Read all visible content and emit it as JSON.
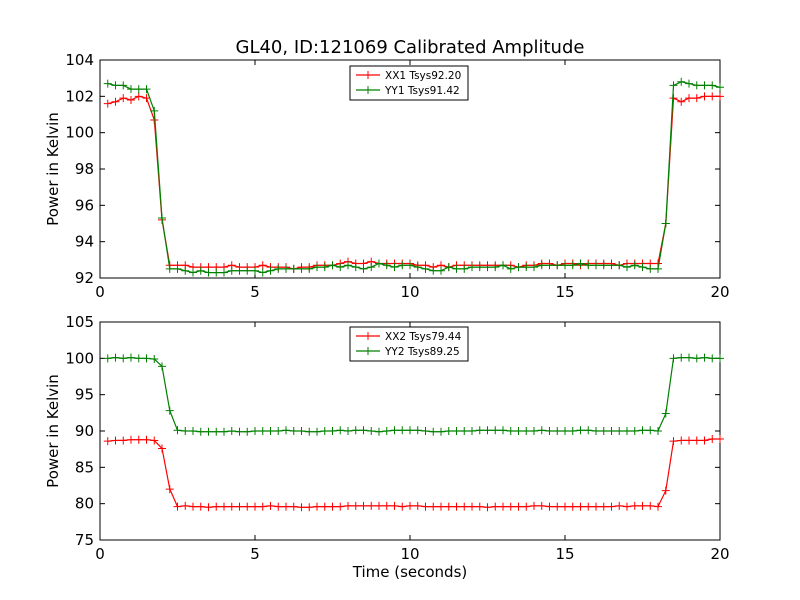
{
  "title": "GL40, ID:121069 Calibrated Amplitude",
  "xlabel": "Time (seconds)",
  "colors": {
    "red": "#ff0000",
    "green": "#008000"
  },
  "chart_data": [
    {
      "type": "line",
      "title": "GL40, ID:121069 Calibrated Amplitude",
      "xlabel": "",
      "ylabel": "Power in Kelvin",
      "xlim": [
        0,
        20
      ],
      "ylim": [
        92,
        104
      ],
      "xticks": [
        "0",
        "5",
        "10",
        "15",
        "20"
      ],
      "yticks": [
        "92",
        "94",
        "96",
        "98",
        "100",
        "102",
        "104"
      ],
      "grid": false,
      "legend_position": "upper-center",
      "x": [
        0.25,
        0.5,
        0.75,
        1.0,
        1.25,
        1.5,
        1.75,
        2.0,
        2.25,
        2.5,
        2.75,
        3.0,
        3.25,
        3.5,
        3.75,
        4.0,
        4.25,
        4.5,
        4.75,
        5.0,
        5.25,
        5.5,
        5.75,
        6.0,
        6.25,
        6.5,
        6.75,
        7.0,
        7.25,
        7.5,
        7.75,
        8.0,
        8.25,
        8.5,
        8.75,
        9.0,
        9.25,
        9.5,
        9.75,
        10.0,
        10.25,
        10.5,
        10.75,
        11.0,
        11.25,
        11.5,
        11.75,
        12.0,
        12.25,
        12.5,
        12.75,
        13.0,
        13.25,
        13.5,
        13.75,
        14.0,
        14.25,
        14.5,
        14.75,
        15.0,
        15.25,
        15.5,
        15.75,
        16.0,
        16.25,
        16.5,
        16.75,
        17.0,
        17.25,
        17.5,
        17.75,
        18.0,
        18.25,
        18.5,
        18.75,
        19.0,
        19.25,
        19.5,
        19.75,
        20.0
      ],
      "series": [
        {
          "name": "XX1 Tsys92.20",
          "color": "#ff0000",
          "values": [
            101.6,
            101.7,
            101.9,
            101.8,
            102.0,
            101.9,
            100.7,
            95.2,
            92.7,
            92.7,
            92.7,
            92.6,
            92.6,
            92.6,
            92.6,
            92.6,
            92.7,
            92.6,
            92.6,
            92.6,
            92.7,
            92.6,
            92.6,
            92.6,
            92.5,
            92.6,
            92.6,
            92.7,
            92.7,
            92.7,
            92.8,
            92.9,
            92.8,
            92.8,
            92.9,
            92.8,
            92.8,
            92.8,
            92.8,
            92.8,
            92.7,
            92.7,
            92.6,
            92.7,
            92.6,
            92.7,
            92.7,
            92.7,
            92.7,
            92.7,
            92.7,
            92.7,
            92.7,
            92.6,
            92.7,
            92.7,
            92.8,
            92.8,
            92.7,
            92.8,
            92.8,
            92.7,
            92.8,
            92.8,
            92.8,
            92.8,
            92.7,
            92.8,
            92.8,
            92.8,
            92.8,
            92.8,
            95.0,
            101.9,
            101.7,
            101.9,
            101.9,
            102.0,
            102.0,
            102.0
          ]
        },
        {
          "name": "YY1 Tsys91.42",
          "color": "#008000",
          "values": [
            102.7,
            102.6,
            102.6,
            102.4,
            102.4,
            102.4,
            101.2,
            95.3,
            92.5,
            92.5,
            92.4,
            92.3,
            92.4,
            92.3,
            92.3,
            92.3,
            92.4,
            92.4,
            92.4,
            92.4,
            92.3,
            92.4,
            92.5,
            92.5,
            92.5,
            92.5,
            92.5,
            92.6,
            92.6,
            92.7,
            92.6,
            92.7,
            92.6,
            92.5,
            92.6,
            92.8,
            92.7,
            92.6,
            92.7,
            92.7,
            92.6,
            92.5,
            92.4,
            92.4,
            92.6,
            92.5,
            92.5,
            92.6,
            92.6,
            92.6,
            92.6,
            92.7,
            92.5,
            92.6,
            92.6,
            92.6,
            92.7,
            92.7,
            92.7,
            92.7,
            92.7,
            92.8,
            92.7,
            92.7,
            92.7,
            92.7,
            92.7,
            92.6,
            92.7,
            92.6,
            92.5,
            92.5,
            95.0,
            102.6,
            102.8,
            102.7,
            102.6,
            102.6,
            102.6,
            102.5
          ]
        }
      ]
    },
    {
      "type": "line",
      "title": "",
      "xlabel": "Time (seconds)",
      "ylabel": "Power in Kelvin",
      "xlim": [
        0,
        20
      ],
      "ylim": [
        75,
        105
      ],
      "xticks": [
        "0",
        "5",
        "10",
        "15",
        "20"
      ],
      "yticks": [
        "75",
        "80",
        "85",
        "90",
        "95",
        "100",
        "105"
      ],
      "grid": false,
      "legend_position": "upper-center",
      "x": [
        0.25,
        0.5,
        0.75,
        1.0,
        1.25,
        1.5,
        1.75,
        2.0,
        2.25,
        2.5,
        2.75,
        3.0,
        3.25,
        3.5,
        3.75,
        4.0,
        4.25,
        4.5,
        4.75,
        5.0,
        5.25,
        5.5,
        5.75,
        6.0,
        6.25,
        6.5,
        6.75,
        7.0,
        7.25,
        7.5,
        7.75,
        8.0,
        8.25,
        8.5,
        8.75,
        9.0,
        9.25,
        9.5,
        9.75,
        10.0,
        10.25,
        10.5,
        10.75,
        11.0,
        11.25,
        11.5,
        11.75,
        12.0,
        12.25,
        12.5,
        12.75,
        13.0,
        13.25,
        13.5,
        13.75,
        14.0,
        14.25,
        14.5,
        14.75,
        15.0,
        15.25,
        15.5,
        15.75,
        16.0,
        16.25,
        16.5,
        16.75,
        17.0,
        17.25,
        17.5,
        17.75,
        18.0,
        18.25,
        18.5,
        18.75,
        19.0,
        19.25,
        19.5,
        19.75,
        20.0
      ],
      "series": [
        {
          "name": "XX2 Tsys79.44",
          "color": "#ff0000",
          "values": [
            88.6,
            88.7,
            88.7,
            88.8,
            88.8,
            88.8,
            88.7,
            87.6,
            82.0,
            79.6,
            79.7,
            79.6,
            79.6,
            79.5,
            79.6,
            79.6,
            79.6,
            79.6,
            79.6,
            79.6,
            79.6,
            79.7,
            79.6,
            79.6,
            79.6,
            79.5,
            79.5,
            79.6,
            79.6,
            79.6,
            79.6,
            79.7,
            79.7,
            79.7,
            79.7,
            79.7,
            79.7,
            79.7,
            79.6,
            79.7,
            79.7,
            79.6,
            79.6,
            79.6,
            79.6,
            79.6,
            79.6,
            79.6,
            79.6,
            79.5,
            79.6,
            79.6,
            79.6,
            79.6,
            79.6,
            79.7,
            79.7,
            79.6,
            79.6,
            79.6,
            79.6,
            79.6,
            79.6,
            79.6,
            79.6,
            79.6,
            79.7,
            79.6,
            79.7,
            79.7,
            79.7,
            79.6,
            81.8,
            88.6,
            88.7,
            88.7,
            88.7,
            88.7,
            88.9,
            88.9
          ]
        },
        {
          "name": "YY2 Tsys89.25",
          "color": "#008000",
          "values": [
            100.0,
            100.1,
            100.0,
            100.1,
            100.0,
            100.0,
            99.9,
            98.9,
            92.8,
            90.1,
            90.0,
            90.0,
            89.9,
            89.9,
            89.9,
            89.9,
            90.0,
            89.9,
            89.9,
            90.0,
            90.0,
            90.0,
            90.0,
            90.1,
            90.0,
            90.0,
            89.9,
            89.9,
            90.0,
            90.0,
            90.1,
            90.0,
            90.1,
            90.1,
            90.0,
            89.9,
            90.0,
            90.1,
            90.1,
            90.1,
            90.1,
            90.0,
            89.9,
            89.9,
            90.0,
            90.0,
            90.0,
            90.0,
            90.1,
            90.1,
            90.1,
            90.1,
            90.0,
            90.0,
            90.0,
            90.0,
            90.1,
            90.0,
            90.0,
            90.0,
            90.0,
            90.1,
            90.1,
            90.0,
            90.0,
            90.0,
            90.0,
            90.0,
            90.0,
            90.1,
            90.1,
            90.0,
            92.4,
            100.0,
            100.1,
            100.1,
            100.0,
            100.1,
            100.0,
            100.0
          ]
        }
      ]
    }
  ]
}
